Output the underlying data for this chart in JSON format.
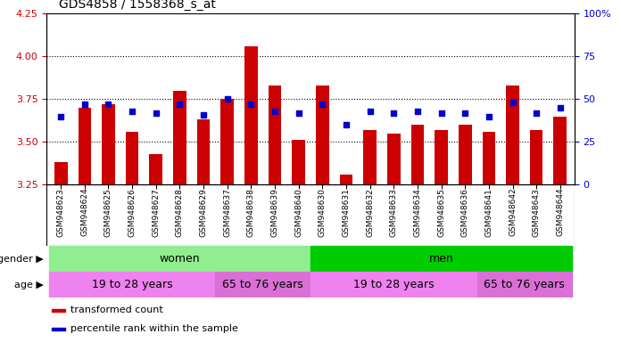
{
  "title": "GDS4858 / 1558368_s_at",
  "samples": [
    "GSM948623",
    "GSM948624",
    "GSM948625",
    "GSM948626",
    "GSM948627",
    "GSM948628",
    "GSM948629",
    "GSM948637",
    "GSM948638",
    "GSM948639",
    "GSM948640",
    "GSM948630",
    "GSM948631",
    "GSM948632",
    "GSM948633",
    "GSM948634",
    "GSM948635",
    "GSM948636",
    "GSM948641",
    "GSM948642",
    "GSM948643",
    "GSM948644"
  ],
  "red_values": [
    3.38,
    3.7,
    3.72,
    3.56,
    3.43,
    3.8,
    3.63,
    3.75,
    4.06,
    3.83,
    3.51,
    3.83,
    3.31,
    3.57,
    3.55,
    3.6,
    3.57,
    3.6,
    3.56,
    3.83,
    3.57,
    3.65
  ],
  "blue_values": [
    40,
    47,
    47,
    43,
    42,
    47,
    41,
    50,
    47,
    43,
    42,
    47,
    35,
    43,
    42,
    43,
    42,
    42,
    40,
    48,
    42,
    45
  ],
  "ylim_left": [
    3.25,
    4.25
  ],
  "ylim_right": [
    0,
    100
  ],
  "yticks_left": [
    3.25,
    3.5,
    3.75,
    4.0,
    4.25
  ],
  "yticks_right": [
    0,
    25,
    50,
    75,
    100
  ],
  "bar_color": "#cc0000",
  "dot_color": "#0000cc",
  "bar_bottom": 3.25,
  "gender_sections": [
    {
      "label": "women",
      "start": 0,
      "end": 11,
      "color": "#90ee90"
    },
    {
      "label": "men",
      "start": 11,
      "end": 22,
      "color": "#00cc00"
    }
  ],
  "age_sections": [
    {
      "label": "19 to 28 years",
      "start": 0,
      "end": 7,
      "color": "#ee82ee"
    },
    {
      "label": "65 to 76 years",
      "start": 7,
      "end": 11,
      "color": "#da70d6"
    },
    {
      "label": "19 to 28 years",
      "start": 11,
      "end": 18,
      "color": "#ee82ee"
    },
    {
      "label": "65 to 76 years",
      "start": 18,
      "end": 22,
      "color": "#da70d6"
    }
  ],
  "legend_items": [
    {
      "label": "transformed count",
      "color": "#cc0000"
    },
    {
      "label": "percentile rank within the sample",
      "color": "#0000cc"
    }
  ],
  "title_fontsize": 10,
  "left_tick_color": "#cc0000",
  "right_tick_color": "#0000cc",
  "xtick_bg": "#d3d3d3",
  "grid_lines": [
    3.5,
    3.75,
    4.0
  ],
  "bar_width": 0.55
}
